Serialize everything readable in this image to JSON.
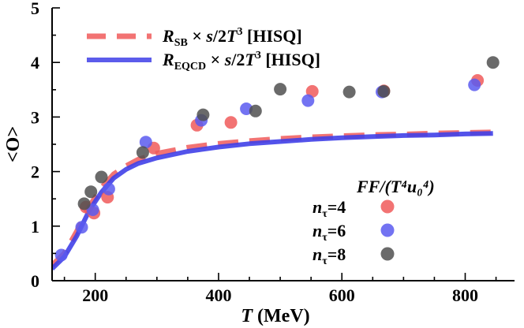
{
  "chart_data": {
    "type": "scatter",
    "xlabel_symbol": "T",
    "xlabel_unit": "(MeV)",
    "ylabel": "<O>",
    "xlim": [
      130,
      880
    ],
    "ylim": [
      0,
      5
    ],
    "xticks": [
      200,
      400,
      600,
      800
    ],
    "yticks": [
      0,
      1,
      2,
      3,
      4,
      5
    ],
    "legend_lines": [
      {
        "name_main": "R",
        "name_sub": "SB",
        "name_rest": " × s/2T",
        "name_sup": "3",
        "name_tail": " [HISQ]",
        "color": "#f05a5a",
        "dash": true
      },
      {
        "name_main": "R",
        "name_sub": "EQCD",
        "name_rest": " × s/2T",
        "name_sup": "3",
        "name_tail": " [HISQ]",
        "color": "#4040e8",
        "dash": false
      }
    ],
    "points_legend_title": "FF/(T⁴u₀⁴)",
    "lines": [
      {
        "name": "R_SB × s/2T^3 [HISQ]",
        "color": "#f05a5a",
        "dash": true,
        "x": [
          130,
          150,
          170,
          190,
          210,
          230,
          250,
          270,
          300,
          350,
          400,
          450,
          500,
          550,
          600,
          650,
          700,
          750,
          800,
          845
        ],
        "y": [
          0.28,
          0.5,
          0.9,
          1.35,
          1.7,
          1.95,
          2.1,
          2.22,
          2.33,
          2.44,
          2.51,
          2.56,
          2.6,
          2.63,
          2.65,
          2.67,
          2.68,
          2.7,
          2.71,
          2.72
        ]
      },
      {
        "name": "R_EQCD × s/2T^3 [HISQ]",
        "color": "#4040e8",
        "dash": false,
        "x": [
          130,
          150,
          170,
          190,
          210,
          230,
          250,
          270,
          300,
          350,
          400,
          450,
          500,
          550,
          600,
          650,
          700,
          750,
          800,
          845
        ],
        "y": [
          0.22,
          0.44,
          0.82,
          1.28,
          1.62,
          1.88,
          2.04,
          2.15,
          2.25,
          2.37,
          2.45,
          2.51,
          2.55,
          2.59,
          2.62,
          2.64,
          2.66,
          2.67,
          2.69,
          2.7
        ]
      }
    ],
    "series": [
      {
        "name": "n_τ=4",
        "legend_main": "n",
        "legend_sub": "τ",
        "legend_rest": "=4",
        "color": "#f05a5a",
        "x": [
          185,
          198,
          220,
          295,
          365,
          420,
          552,
          668,
          820
        ],
        "y": [
          1.35,
          1.24,
          1.53,
          2.43,
          2.85,
          2.9,
          3.47,
          3.48,
          3.67
        ]
      },
      {
        "name": "n_τ=6",
        "legend_main": "n",
        "legend_sub": "τ",
        "legend_rest": "=6",
        "color": "#5a5af0",
        "x": [
          145,
          178,
          196,
          222,
          282,
          372,
          445,
          545,
          665,
          815
        ],
        "y": [
          0.47,
          0.98,
          1.3,
          1.68,
          2.54,
          2.94,
          3.15,
          3.3,
          3.46,
          3.59
        ]
      },
      {
        "name": "n_τ=8",
        "legend_main": "n",
        "legend_sub": "τ",
        "legend_rest": "=8",
        "color": "#505050",
        "x": [
          182,
          193,
          210,
          277,
          375,
          460,
          500,
          612,
          668,
          845
        ],
        "y": [
          1.41,
          1.63,
          1.9,
          2.35,
          3.04,
          3.11,
          3.51,
          3.46,
          3.47,
          4.0
        ]
      }
    ]
  }
}
